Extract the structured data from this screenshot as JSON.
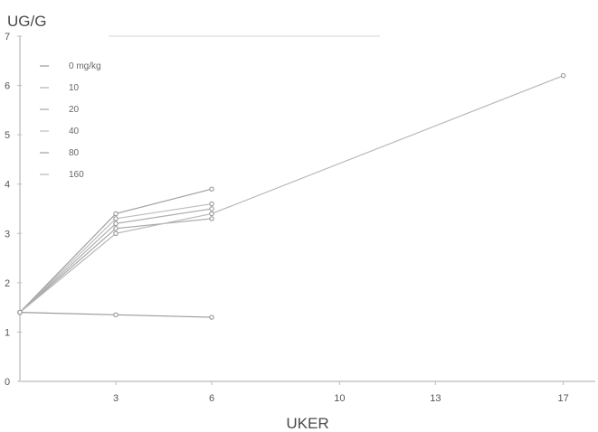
{
  "chart_data": {
    "type": "line",
    "ylabel": "UG/G",
    "xlabel": "UKER",
    "xlim": [
      0,
      18
    ],
    "ylim": [
      0,
      7
    ],
    "x_ticks": [
      {
        "value": 3,
        "label": "3"
      },
      {
        "value": 6,
        "label": "6"
      },
      {
        "value": 10,
        "label": "10"
      },
      {
        "value": 13,
        "label": "13"
      },
      {
        "value": 17,
        "label": "17"
      }
    ],
    "y_ticks": [
      {
        "value": 0,
        "label": "0"
      },
      {
        "value": 1,
        "label": "1"
      },
      {
        "value": 2,
        "label": "2"
      },
      {
        "value": 3,
        "label": "3"
      },
      {
        "value": 4,
        "label": "4"
      },
      {
        "value": 5,
        "label": "5"
      },
      {
        "value": 6,
        "label": "6"
      },
      {
        "value": 7,
        "label": "7"
      }
    ],
    "legend_position": "top-left",
    "grid": false,
    "series": [
      {
        "name": "0 mg/kg",
        "x": [
          0,
          3,
          6
        ],
        "y": [
          1.4,
          1.35,
          1.3
        ]
      },
      {
        "name": "10",
        "x": [
          0,
          3,
          6
        ],
        "y": [
          1.4,
          3.2,
          3.5
        ]
      },
      {
        "name": "20",
        "x": [
          0,
          3,
          6
        ],
        "y": [
          1.4,
          3.1,
          3.3
        ]
      },
      {
        "name": "40",
        "x": [
          0,
          3,
          6
        ],
        "y": [
          1.4,
          3.3,
          3.6
        ]
      },
      {
        "name": "80",
        "x": [
          0,
          3,
          6
        ],
        "y": [
          1.4,
          3.4,
          3.9
        ]
      },
      {
        "name": "160",
        "x": [
          0,
          3,
          6,
          17
        ],
        "y": [
          1.4,
          3.0,
          3.4,
          6.2
        ]
      }
    ]
  }
}
